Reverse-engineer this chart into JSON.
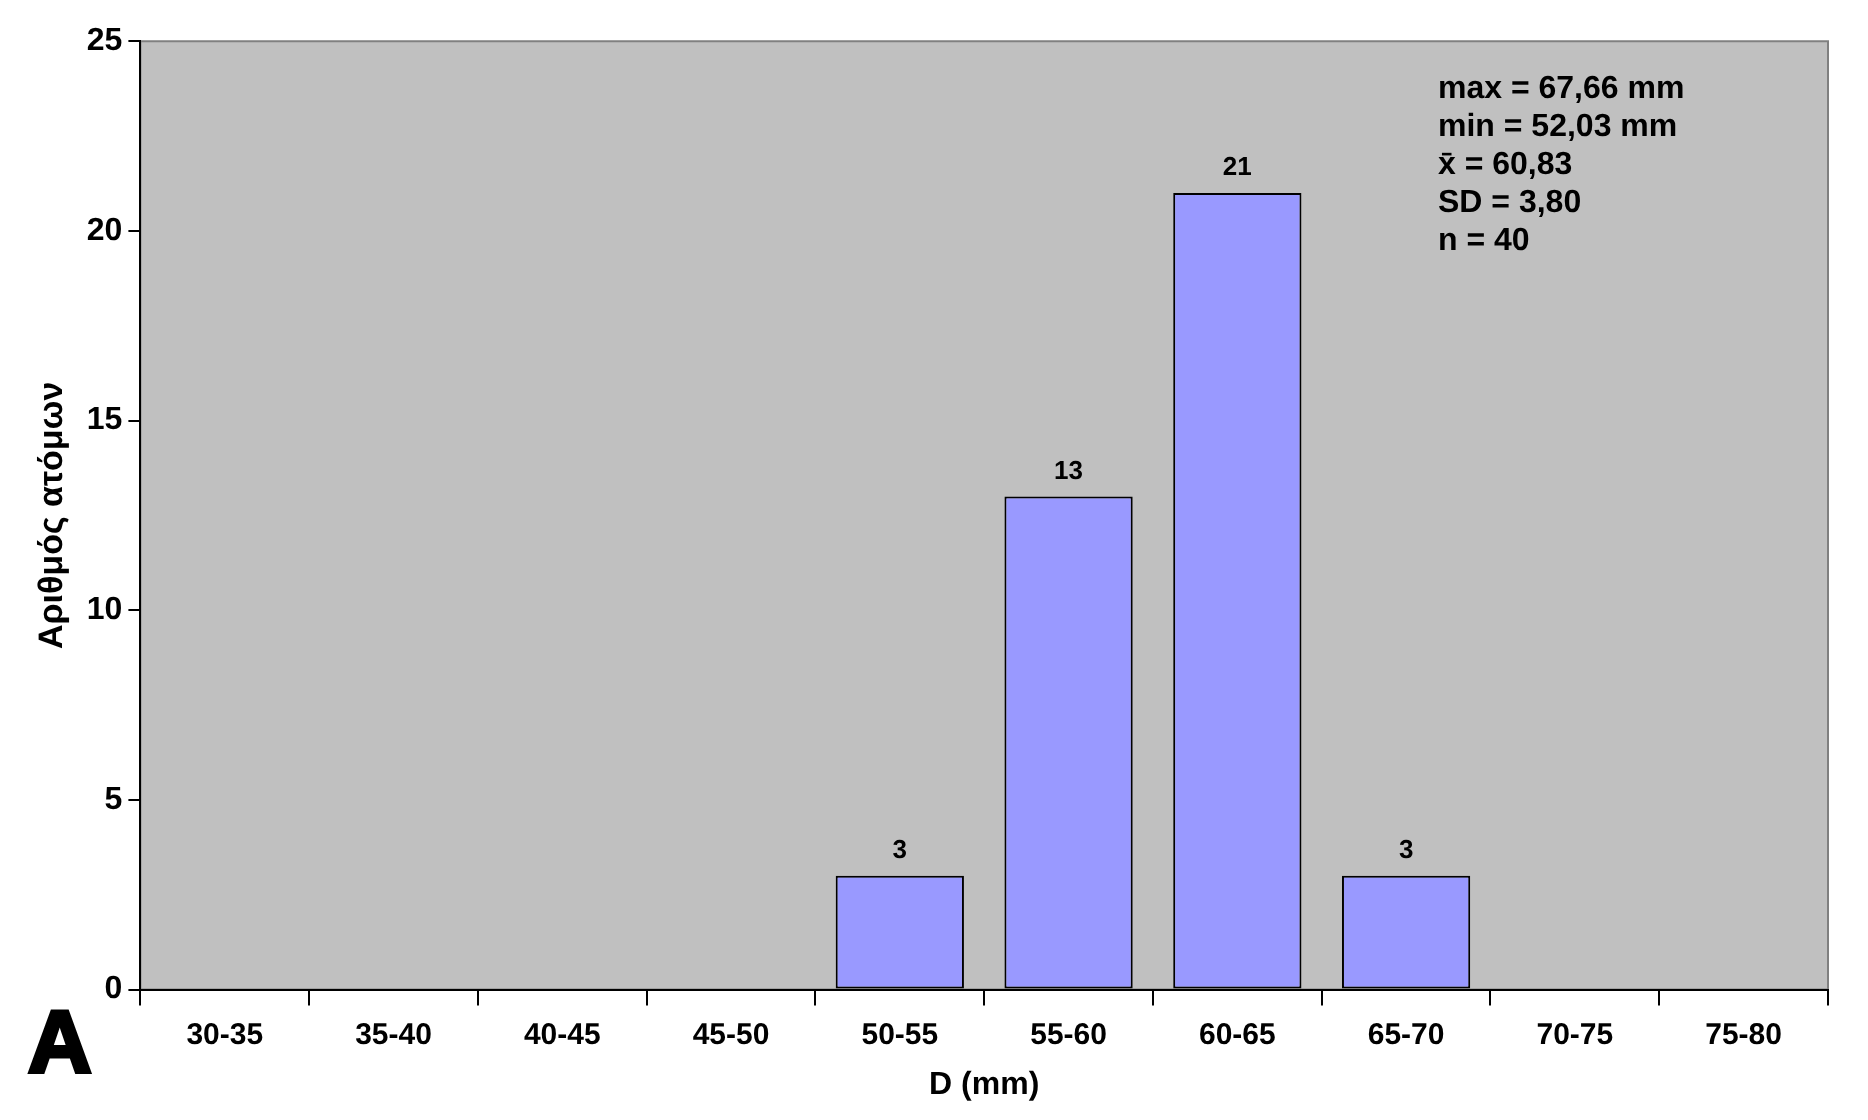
{
  "chart_data": {
    "type": "bar",
    "xlabel": "D (mm)",
    "ylabel": "Αριθμός ατόμων",
    "categories": [
      "30-35",
      "35-40",
      "40-45",
      "45-50",
      "50-55",
      "55-60",
      "60-65",
      "65-70",
      "70-75",
      "75-80"
    ],
    "values": [
      0,
      0,
      0,
      0,
      3,
      13,
      21,
      3,
      0,
      0
    ],
    "value_labels": [
      null,
      null,
      null,
      null,
      "3",
      "13",
      "21",
      "3",
      null,
      null
    ],
    "color": "#9999ff",
    "ylim": [
      0,
      25
    ],
    "yticks": [
      0,
      5,
      10,
      15,
      20,
      25
    ],
    "grid": false,
    "legend": false,
    "annotations": [
      "max = 67,66 mm",
      "min = 52,03 mm",
      "x̄ = 60,83",
      "SD = 3,80",
      "n = 40",
      "A"
    ]
  }
}
